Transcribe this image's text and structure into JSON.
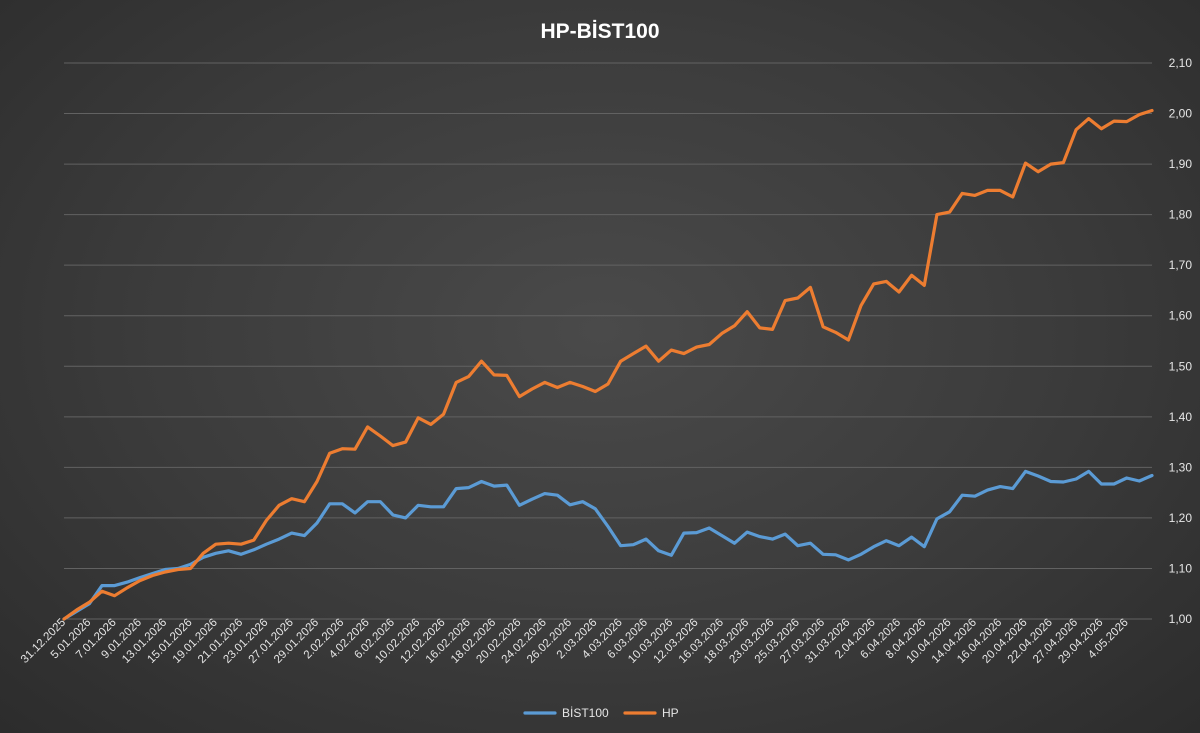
{
  "chart_data": {
    "type": "line",
    "title": "HP-BİST100",
    "xlabel": "",
    "ylabel": "",
    "ylim": [
      1.0,
      2.1
    ],
    "ytick_labels": [
      "1,00",
      "1,10",
      "1,20",
      "1,30",
      "1,40",
      "1,50",
      "1,60",
      "1,70",
      "1,80",
      "1,90",
      "2,00",
      "2,10"
    ],
    "grid": true,
    "legend_position": "bottom",
    "x_tick_labels": [
      "31.12.2025",
      "5.01.2026",
      "7.01.2026",
      "9.01.2026",
      "13.01.2026",
      "15.01.2026",
      "19.01.2026",
      "21.01.2026",
      "23.01.2026",
      "27.01.2026",
      "29.01.2026",
      "2.02.2026",
      "4.02.2026",
      "6.02.2026",
      "10.02.2026",
      "12.02.2026",
      "16.02.2026",
      "18.02.2026",
      "20.02.2026",
      "24.02.2026",
      "26.02.2026",
      "2.03.2026",
      "4.03.2026",
      "6.03.2026",
      "10.03.2026",
      "12.03.2026",
      "16.03.2026",
      "18.03.2026",
      "23.03.2026",
      "25.03.2026",
      "27.03.2026",
      "31.03.2026",
      "2.04.2026",
      "6.04.2026",
      "8.04.2026",
      "10.04.2026",
      "14.04.2026",
      "16.04.2026",
      "20.04.2026",
      "22.04.2026",
      "27.04.2026",
      "29.04.2026",
      "4.05.2026"
    ],
    "series": [
      {
        "name": "BİST100",
        "color": "#5b9bd5",
        "values": [
          1.0,
          1.015,
          1.03,
          1.066,
          1.066,
          1.073,
          1.082,
          1.09,
          1.098,
          1.1,
          1.108,
          1.122,
          1.13,
          1.135,
          1.128,
          1.137,
          1.148,
          1.158,
          1.17,
          1.165,
          1.19,
          1.228,
          1.228,
          1.21,
          1.232,
          1.232,
          1.206,
          1.2,
          1.225,
          1.222,
          1.222,
          1.258,
          1.26,
          1.272,
          1.263,
          1.265,
          1.225,
          1.237,
          1.248,
          1.245,
          1.226,
          1.232,
          1.218,
          1.183,
          1.145,
          1.147,
          1.158,
          1.135,
          1.126,
          1.17,
          1.171,
          1.18,
          1.165,
          1.15,
          1.172,
          1.163,
          1.158,
          1.168,
          1.145,
          1.15,
          1.128,
          1.127,
          1.117,
          1.128,
          1.143,
          1.155,
          1.145,
          1.162,
          1.143,
          1.198,
          1.212,
          1.245,
          1.243,
          1.255,
          1.262,
          1.258,
          1.292,
          1.283,
          1.272,
          1.271,
          1.277,
          1.292,
          1.267,
          1.267,
          1.279,
          1.273,
          1.284
        ]
      },
      {
        "name": "HP",
        "color": "#ed7d31",
        "values": [
          1.0,
          1.018,
          1.033,
          1.055,
          1.046,
          1.062,
          1.076,
          1.086,
          1.093,
          1.098,
          1.1,
          1.13,
          1.148,
          1.15,
          1.148,
          1.156,
          1.195,
          1.225,
          1.238,
          1.232,
          1.272,
          1.328,
          1.337,
          1.336,
          1.38,
          1.362,
          1.343,
          1.35,
          1.398,
          1.385,
          1.405,
          1.468,
          1.48,
          1.51,
          1.483,
          1.482,
          1.44,
          1.455,
          1.468,
          1.458,
          1.468,
          1.46,
          1.45,
          1.465,
          1.51,
          1.525,
          1.54,
          1.51,
          1.532,
          1.525,
          1.538,
          1.543,
          1.565,
          1.58,
          1.608,
          1.576,
          1.573,
          1.63,
          1.635,
          1.656,
          1.578,
          1.567,
          1.552,
          1.62,
          1.663,
          1.668,
          1.647,
          1.68,
          1.66,
          1.8,
          1.805,
          1.842,
          1.838,
          1.848,
          1.848,
          1.835,
          1.902,
          1.885,
          1.9,
          1.903,
          1.968,
          1.99,
          1.97,
          1.985,
          1.984,
          1.998,
          2.006
        ]
      }
    ]
  }
}
